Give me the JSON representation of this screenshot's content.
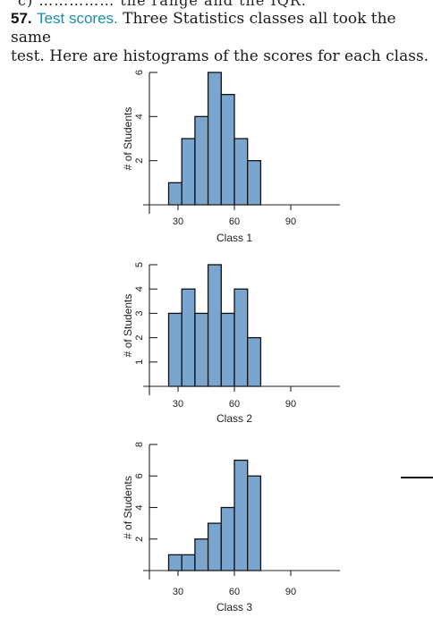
{
  "header_fragment": "c) …………… the range and the IQR.",
  "problem": {
    "number": "57.",
    "topic": "Test scores.",
    "text_line1": "Three Statistics classes all took the same",
    "text_line2": "test. Here are histograms of the scores for each class."
  },
  "chart_data": [
    {
      "type": "bar",
      "title": "",
      "xlabel": "Class 1",
      "ylabel": "# of Students",
      "bin_start": 25,
      "bin_width": 7,
      "values": [
        1,
        3,
        4,
        6,
        5,
        3,
        2
      ],
      "x_ticks": [
        30,
        60,
        90
      ],
      "y_ticks": [
        2,
        4,
        6
      ],
      "ylim": [
        0,
        6
      ],
      "bar_color": "#7aa5cf",
      "grid": false
    },
    {
      "type": "bar",
      "title": "",
      "xlabel": "Class 2",
      "ylabel": "# of Students",
      "bin_start": 25,
      "bin_width": 7,
      "values": [
        3,
        4,
        3,
        5,
        3,
        4,
        2
      ],
      "x_ticks": [
        30,
        60,
        90
      ],
      "y_ticks": [
        1,
        2,
        3,
        4,
        5
      ],
      "ylim": [
        0,
        5
      ],
      "bar_color": "#7aa5cf",
      "grid": false
    },
    {
      "type": "bar",
      "title": "",
      "xlabel": "Class 3",
      "ylabel": "# of Students",
      "bin_start": 25,
      "bin_width": 7,
      "values": [
        1,
        1,
        2,
        3,
        4,
        7,
        6
      ],
      "x_ticks": [
        30,
        60,
        90
      ],
      "y_ticks": [
        2,
        4,
        6,
        8
      ],
      "ylim": [
        0,
        8
      ],
      "bar_color": "#7aa5cf",
      "grid": false
    }
  ]
}
